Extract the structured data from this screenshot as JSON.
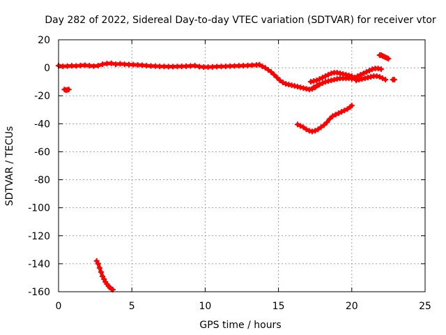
{
  "chart_data": {
    "type": "scatter",
    "title": "Day 282 of 2022, Sidereal Day-to-day VTEC variation (SDTVAR) for receiver vtor",
    "xlabel": "GPS time / hours",
    "ylabel": "SDTVAR / TECUs",
    "xlim": [
      0,
      25
    ],
    "ylim": [
      -160,
      20
    ],
    "xticks": [
      "0",
      "5",
      "10",
      "15",
      "20",
      "25"
    ],
    "yticks": [
      "20",
      "0",
      "-20",
      "-40",
      "-60",
      "-80",
      "-100",
      "-120",
      "-140",
      "-160"
    ],
    "grid": true,
    "marker": "plus",
    "series_color": "#ff0000",
    "series": [
      {
        "name": "main",
        "points": [
          [
            0.0,
            1.5
          ],
          [
            0.3,
            1.0
          ],
          [
            0.6,
            1.2
          ],
          [
            0.9,
            1.4
          ],
          [
            1.2,
            1.3
          ],
          [
            1.5,
            1.6
          ],
          [
            1.8,
            1.8
          ],
          [
            2.1,
            1.5
          ],
          [
            2.4,
            1.2
          ],
          [
            2.7,
            1.5
          ],
          [
            3.0,
            2.5
          ],
          [
            3.3,
            3.0
          ],
          [
            3.6,
            3.2
          ],
          [
            3.9,
            2.5
          ],
          [
            4.2,
            2.8
          ],
          [
            4.5,
            2.5
          ],
          [
            4.8,
            2.3
          ],
          [
            5.1,
            2.2
          ],
          [
            5.4,
            2.0
          ],
          [
            5.7,
            1.8
          ],
          [
            6.0,
            1.5
          ],
          [
            6.3,
            1.3
          ],
          [
            6.6,
            1.2
          ],
          [
            6.9,
            1.0
          ],
          [
            7.2,
            0.9
          ],
          [
            7.5,
            0.8
          ],
          [
            7.8,
            0.8
          ],
          [
            8.1,
            0.9
          ],
          [
            8.4,
            1.0
          ],
          [
            8.7,
            1.1
          ],
          [
            9.0,
            1.3
          ],
          [
            9.3,
            1.5
          ],
          [
            9.6,
            0.8
          ],
          [
            9.9,
            0.5
          ],
          [
            10.2,
            0.5
          ],
          [
            10.5,
            0.6
          ],
          [
            10.8,
            0.8
          ],
          [
            11.1,
            0.9
          ],
          [
            11.4,
            1.0
          ],
          [
            11.7,
            1.2
          ],
          [
            12.0,
            1.3
          ],
          [
            12.3,
            1.4
          ],
          [
            12.6,
            1.5
          ],
          [
            12.9,
            1.6
          ],
          [
            13.2,
            1.8
          ],
          [
            13.5,
            2.0
          ],
          [
            13.7,
            2.2
          ],
          [
            13.9,
            1.0
          ],
          [
            14.1,
            0.0
          ],
          [
            14.3,
            -1.5
          ],
          [
            14.5,
            -3.0
          ],
          [
            14.7,
            -5.0
          ],
          [
            14.9,
            -7.0
          ],
          [
            15.1,
            -9.0
          ],
          [
            15.3,
            -10.5
          ],
          [
            15.5,
            -11.5
          ],
          [
            15.7,
            -12.0
          ],
          [
            15.9,
            -12.5
          ],
          [
            16.1,
            -13.0
          ],
          [
            16.3,
            -13.5
          ],
          [
            16.5,
            -14.0
          ],
          [
            16.7,
            -14.5
          ],
          [
            16.9,
            -15.0
          ],
          [
            17.1,
            -15.5
          ],
          [
            17.3,
            -15.0
          ],
          [
            17.5,
            -14.0
          ],
          [
            17.7,
            -12.5
          ]
        ]
      },
      {
        "name": "early-dip",
        "points": [
          [
            0.4,
            -15.5
          ],
          [
            0.5,
            -16.0
          ],
          [
            0.6,
            -15.8
          ],
          [
            0.7,
            -15.5
          ]
        ]
      },
      {
        "name": "low-arc",
        "points": [
          [
            2.6,
            -138
          ],
          [
            2.7,
            -140
          ],
          [
            2.8,
            -143
          ],
          [
            2.9,
            -146
          ],
          [
            3.0,
            -149
          ],
          [
            3.1,
            -151
          ],
          [
            3.2,
            -153
          ],
          [
            3.3,
            -154.5
          ],
          [
            3.4,
            -156
          ],
          [
            3.5,
            -157
          ],
          [
            3.6,
            -158
          ],
          [
            3.7,
            -158.5
          ]
        ]
      },
      {
        "name": "late-1",
        "points": [
          [
            17.2,
            -10.0
          ],
          [
            17.4,
            -9.5
          ],
          [
            17.6,
            -9.0
          ],
          [
            17.8,
            -8.0
          ],
          [
            18.0,
            -7.0
          ],
          [
            18.2,
            -6.0
          ],
          [
            18.4,
            -5.0
          ],
          [
            18.6,
            -4.0
          ],
          [
            18.8,
            -3.5
          ],
          [
            19.0,
            -3.5
          ],
          [
            19.2,
            -4.0
          ],
          [
            19.4,
            -4.5
          ],
          [
            19.6,
            -5.0
          ],
          [
            19.8,
            -5.5
          ],
          [
            20.0,
            -6.0
          ]
        ]
      },
      {
        "name": "late-2",
        "points": [
          [
            17.4,
            -14.0
          ],
          [
            17.6,
            -13.0
          ],
          [
            17.8,
            -12.0
          ],
          [
            18.0,
            -11.0
          ],
          [
            18.2,
            -10.0
          ],
          [
            18.4,
            -9.5
          ],
          [
            18.6,
            -9.0
          ],
          [
            18.8,
            -8.5
          ],
          [
            19.0,
            -8.0
          ],
          [
            19.2,
            -7.5
          ],
          [
            19.4,
            -7.5
          ],
          [
            19.6,
            -7.5
          ],
          [
            19.8,
            -7.5
          ],
          [
            20.0,
            -7.0
          ]
        ]
      },
      {
        "name": "late-3",
        "points": [
          [
            16.3,
            -40.5
          ],
          [
            16.5,
            -41.5
          ],
          [
            16.7,
            -42.5
          ],
          [
            16.9,
            -44.0
          ],
          [
            17.1,
            -45.0
          ],
          [
            17.3,
            -45.5
          ],
          [
            17.5,
            -45.0
          ],
          [
            17.7,
            -44.0
          ],
          [
            17.9,
            -42.5
          ],
          [
            18.1,
            -41.0
          ],
          [
            18.3,
            -39.0
          ],
          [
            18.5,
            -36.5
          ],
          [
            18.7,
            -34.5
          ],
          [
            18.9,
            -33.5
          ],
          [
            19.1,
            -32.5
          ],
          [
            19.3,
            -31.5
          ],
          [
            19.5,
            -30.5
          ],
          [
            19.7,
            -29.5
          ],
          [
            19.9,
            -28.0
          ],
          [
            20.0,
            -27.0
          ]
        ]
      },
      {
        "name": "late-4",
        "points": [
          [
            20.0,
            -8.0
          ],
          [
            20.2,
            -7.0
          ],
          [
            20.4,
            -6.0
          ],
          [
            20.6,
            -5.0
          ],
          [
            20.8,
            -4.0
          ],
          [
            21.0,
            -3.0
          ],
          [
            21.2,
            -2.0
          ],
          [
            21.4,
            -1.0
          ],
          [
            21.6,
            -0.5
          ],
          [
            21.8,
            -0.5
          ],
          [
            22.0,
            -1.0
          ]
        ]
      },
      {
        "name": "late-5",
        "points": [
          [
            20.3,
            -9.0
          ],
          [
            20.5,
            -8.5
          ],
          [
            20.7,
            -8.0
          ],
          [
            20.9,
            -7.5
          ],
          [
            21.1,
            -7.0
          ],
          [
            21.3,
            -6.5
          ],
          [
            21.5,
            -6.0
          ],
          [
            21.7,
            -6.0
          ],
          [
            21.9,
            -6.5
          ],
          [
            22.1,
            -7.5
          ],
          [
            22.3,
            -8.5
          ]
        ]
      },
      {
        "name": "late-6",
        "points": [
          [
            21.9,
            9.0
          ],
          [
            22.0,
            9.0
          ],
          [
            22.1,
            8.5
          ],
          [
            22.2,
            8.0
          ],
          [
            22.3,
            7.5
          ],
          [
            22.4,
            7.0
          ],
          [
            22.5,
            6.5
          ]
        ]
      },
      {
        "name": "late-7",
        "points": [
          [
            22.8,
            -8.5
          ],
          [
            22.9,
            -8.5
          ]
        ]
      }
    ]
  }
}
